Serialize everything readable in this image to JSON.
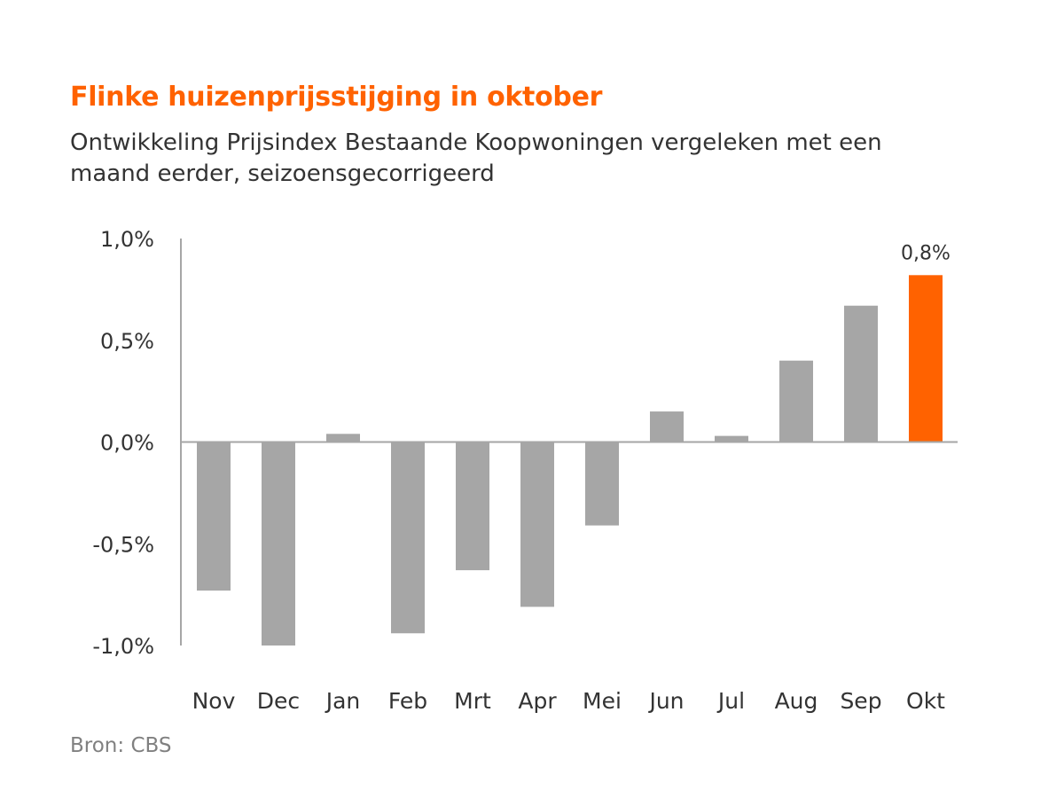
{
  "title": "Flinke huizenprijsstijging in oktober",
  "subtitle": "Ontwikkeling Prijsindex Bestaande Koopwoningen vergeleken met een maand eerder, seizoensgecorrigeerd",
  "source": "Bron: CBS",
  "colors": {
    "title": "#ff6200",
    "bar_default": "#a6a6a6",
    "bar_highlight": "#ff6200",
    "axis": "#a6a6a6",
    "text": "#333333"
  },
  "chart_data": {
    "type": "bar",
    "categories": [
      "Nov",
      "Dec",
      "Jan",
      "Feb",
      "Mrt",
      "Apr",
      "Mei",
      "Jun",
      "Jul",
      "Aug",
      "Sep",
      "Okt"
    ],
    "values": [
      -0.73,
      -1.0,
      0.04,
      -0.94,
      -0.63,
      -0.81,
      -0.41,
      0.15,
      0.03,
      0.4,
      0.67,
      0.82
    ],
    "highlight_index": 11,
    "data_labels": [
      {
        "index": 11,
        "text": "0,8%"
      }
    ],
    "ylim": [
      -1.0,
      1.0
    ],
    "yticks": [
      1.0,
      0.5,
      0.0,
      -0.5,
      -1.0
    ],
    "ytick_labels": [
      "1,0%",
      "0,5%",
      "0,0%",
      "-0,5%",
      "-1,0%"
    ],
    "grid": false,
    "legend": "none",
    "xlabel": "",
    "ylabel": ""
  }
}
